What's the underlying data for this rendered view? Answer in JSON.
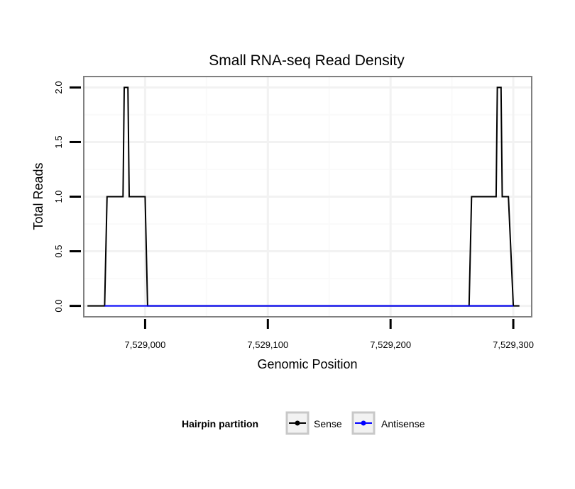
{
  "chart_data": {
    "type": "line",
    "title": "Small RNA-seq Read Density",
    "xlabel": "Genomic Position",
    "ylabel": "Total Reads",
    "xlim": [
      7528950,
      7529315
    ],
    "ylim": [
      -0.1,
      2.1
    ],
    "x_ticks": [
      7529000,
      7529100,
      7529200,
      7529300
    ],
    "x_tick_labels": [
      "7,529,000",
      "7,529,100",
      "7,529,200",
      "7,529,300"
    ],
    "y_ticks": [
      0.0,
      0.5,
      1.0,
      1.5,
      2.0
    ],
    "y_tick_labels": [
      "0.0",
      "0.5",
      "1.0",
      "1.5",
      "2.0"
    ],
    "grid": true,
    "legend_title": "Hairpin partition",
    "legend_position": "bottom",
    "series": [
      {
        "name": "Sense",
        "color": "#000000",
        "x": [
          7528953,
          7528967,
          7528969,
          7528982,
          7528983,
          7528986,
          7528987,
          7529000,
          7529002,
          7529305,
          7529300,
          7529296,
          7529291,
          7529290,
          7529287,
          7529286,
          7529266,
          7529264
        ],
        "y": [
          0,
          0,
          1,
          1,
          2,
          2,
          1,
          1,
          0,
          0,
          0,
          1,
          1,
          2,
          2,
          1,
          1,
          0
        ]
      },
      {
        "name": "Antisense",
        "color": "#0000ff",
        "x": [
          7528967,
          7529002,
          7529264,
          7529300
        ],
        "y": [
          0,
          0,
          0,
          0
        ]
      }
    ]
  }
}
